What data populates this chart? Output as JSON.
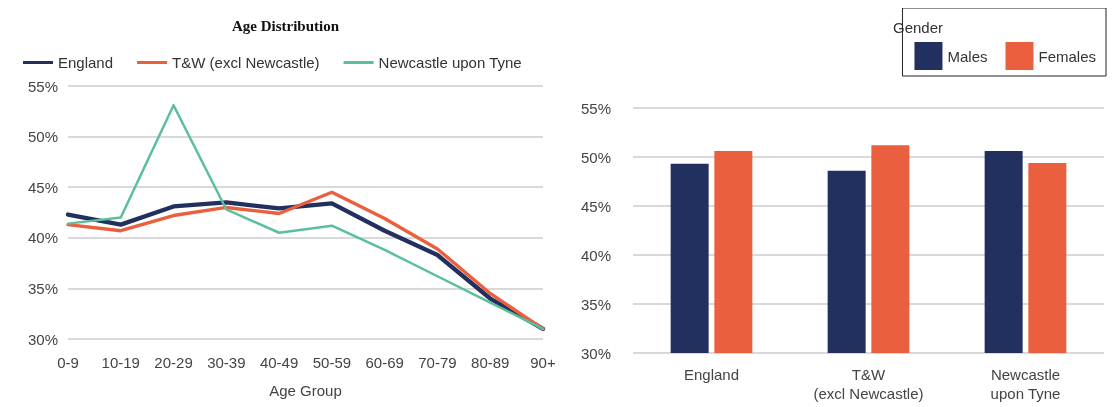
{
  "chart_data": [
    {
      "type": "line",
      "title": "Age Distribution",
      "xlabel": "Age Group",
      "categories": [
        "0-9",
        "10-19",
        "20-29",
        "30-39",
        "40-49",
        "50-59",
        "60-69",
        "70-79",
        "80-89",
        "90+"
      ],
      "series": [
        {
          "name": "England",
          "color": "#22305f",
          "values": [
            42.3,
            41.3,
            43.1,
            43.5,
            42.9,
            43.4,
            40.7,
            38.3,
            34.0,
            31.0
          ]
        },
        {
          "name": "T&W (excl Newcastle)",
          "color": "#ea5f3d",
          "values": [
            41.3,
            40.7,
            42.2,
            43.0,
            42.4,
            44.5,
            41.9,
            38.9,
            34.5,
            31.0
          ]
        },
        {
          "name": "Newcastle upon Tyne",
          "color": "#5bbf9c",
          "values": [
            41.4,
            42.0,
            53.1,
            42.8,
            40.5,
            41.2,
            38.8,
            36.2,
            33.6,
            31.0
          ]
        }
      ],
      "ylim": [
        30,
        55
      ],
      "yticks": [
        {
          "value": 30,
          "label": "30%"
        },
        {
          "value": 35,
          "label": "35%"
        },
        {
          "value": 40,
          "label": "40%"
        },
        {
          "value": 45,
          "label": "45%"
        },
        {
          "value": 50,
          "label": "50%"
        },
        {
          "value": 55,
          "label": "55%"
        }
      ],
      "grid": "y",
      "legend": "top left",
      "marker": "none",
      "line_style": "solid"
    },
    {
      "type": "bar",
      "legend_title": "Gender",
      "categories": [
        "England",
        "T&W\n(excl Newcastle)",
        "Newcastle\nupon Tyne"
      ],
      "series": [
        {
          "name": "Males",
          "color": "#22305f",
          "values": [
            49.3,
            48.6,
            50.6
          ]
        },
        {
          "name": "Females",
          "color": "#ea5f3d",
          "values": [
            50.6,
            51.2,
            49.4
          ]
        }
      ],
      "ylim": [
        30,
        55
      ],
      "yticks": [
        {
          "value": 30,
          "label": "30%"
        },
        {
          "value": 35,
          "label": "35%"
        },
        {
          "value": 40,
          "label": "40%"
        },
        {
          "value": 45,
          "label": "45%"
        },
        {
          "value": 50,
          "label": "50%"
        },
        {
          "value": 55,
          "label": "55%"
        }
      ],
      "grid": "y",
      "legend": "top right"
    }
  ]
}
